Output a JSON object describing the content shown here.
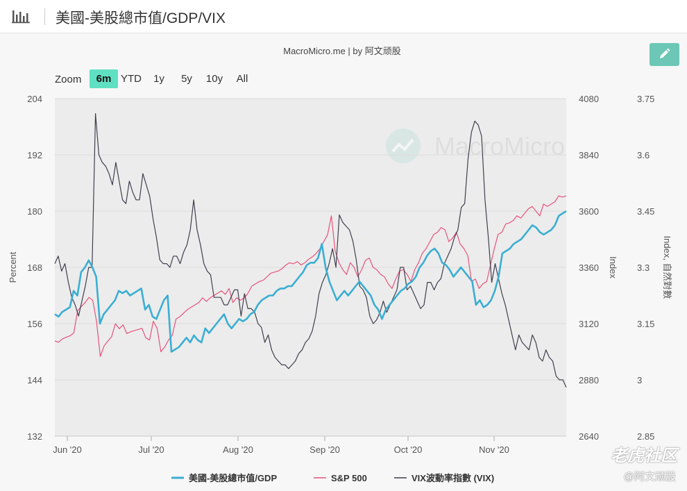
{
  "header": {
    "title": "美國-美股總市值/GDP/VIX",
    "chart_icon": "bar-chart-icon",
    "edit_icon": "pencil-icon"
  },
  "credit": "MacroMicro.me | by 阿文顽股",
  "watermark": "MacroMicro",
  "zoom": {
    "label": "Zoom",
    "options": [
      "6m",
      "YTD",
      "1y",
      "5y",
      "10y",
      "All"
    ],
    "selected": "6m"
  },
  "footer_watermark": {
    "brand": "老虎社区",
    "user": "@阿文顽股"
  },
  "colors": {
    "ratio": "#3aaed3",
    "sp500": "#e7527a",
    "vix": "#3e3e4e",
    "zoom_selected": "#5fe0c3",
    "edit_button": "#6cc7b6",
    "plot_bg": "#ececec"
  },
  "chart_data": {
    "type": "line",
    "x_ticks": [
      "Jun '20",
      "Jul '20",
      "Aug '20",
      "Sep '20",
      "Oct '20",
      "Nov '20"
    ],
    "axes": {
      "left": {
        "label": "Percent",
        "range": [
          132,
          204
        ],
        "ticks": [
          "204",
          "192",
          "180",
          "168",
          "156",
          "144",
          "132"
        ]
      },
      "middle": {
        "label": "Index",
        "range": [
          2640,
          4080
        ],
        "ticks": [
          "4080",
          "3840",
          "3600",
          "3360",
          "3120",
          "2880",
          "2640"
        ]
      },
      "right": {
        "label": "Index, 自然對數",
        "range": [
          2.85,
          3.75
        ],
        "ticks": [
          "3.75",
          "3.6",
          "3.45",
          "3.3",
          "3.15",
          "3",
          "2.85"
        ]
      }
    },
    "grid": true,
    "legend_position": "bottom",
    "series": [
      {
        "name": "美國-美股總市值/GDP",
        "axis": "left",
        "values": [
          158,
          157.5,
          158.5,
          159,
          159.5,
          163,
          162,
          167,
          168,
          169.5,
          168,
          166,
          156,
          158,
          159,
          160,
          161,
          163,
          162.5,
          163,
          162,
          162.5,
          163,
          163.5,
          159,
          160,
          157.5,
          157,
          159,
          161,
          162,
          150,
          150.5,
          151,
          152,
          153,
          152,
          153.5,
          152.5,
          152,
          155,
          154,
          155,
          156,
          157,
          158,
          156,
          155,
          156,
          157,
          156.5,
          157,
          158,
          158.5,
          160,
          161,
          161.5,
          162,
          162,
          163,
          163.5,
          163.5,
          164,
          164,
          165,
          166,
          167,
          168.5,
          169,
          169,
          170,
          173,
          168,
          165,
          163,
          161,
          162,
          163,
          162,
          163,
          164,
          165,
          164,
          163,
          162,
          160,
          159,
          157,
          159,
          160,
          161,
          162,
          163,
          163.5,
          164.5,
          165,
          166,
          168,
          169,
          170.5,
          171.5,
          172,
          171,
          169,
          168.5,
          167.5,
          166,
          167,
          168,
          167,
          166,
          165,
          160,
          161,
          159.5,
          160,
          161,
          163,
          166,
          171,
          171.5,
          172,
          173,
          173.5,
          174,
          175,
          176,
          177,
          176.5,
          175.5,
          175,
          175.5,
          176,
          177,
          179,
          179.5,
          180
        ]
      },
      {
        "name": "S&P 500",
        "axis": "middle",
        "values": [
          3046,
          3041,
          3055,
          3062,
          3068,
          3080,
          3175,
          3193,
          3210,
          3232,
          3220,
          3130,
          2980,
          3025,
          3045,
          3065,
          3120,
          3098,
          3115,
          3078,
          3085,
          3090,
          3095,
          3100,
          3060,
          3050,
          3130,
          3100,
          3000,
          3020,
          3050,
          3070,
          3140,
          3150,
          3165,
          3180,
          3190,
          3200,
          3210,
          3230,
          3215,
          3230,
          3240,
          3250,
          3260,
          3245,
          3270,
          3210,
          3230,
          3220,
          3230,
          3250,
          3280,
          3290,
          3300,
          3305,
          3320,
          3335,
          3340,
          3345,
          3355,
          3370,
          3380,
          3375,
          3385,
          3370,
          3380,
          3395,
          3405,
          3420,
          3440,
          3470,
          3500,
          3580,
          3430,
          3380,
          3350,
          3330,
          3380,
          3360,
          3320,
          3350,
          3390,
          3400,
          3360,
          3350,
          3330,
          3320,
          3290,
          3270,
          3310,
          3345,
          3350,
          3330,
          3300,
          3350,
          3380,
          3420,
          3440,
          3470,
          3500,
          3510,
          3530,
          3520,
          3470,
          3485,
          3510,
          3460,
          3440,
          3410,
          3300,
          3310,
          3270,
          3290,
          3300,
          3370,
          3440,
          3500,
          3510,
          3545,
          3550,
          3560,
          3580,
          3570,
          3590,
          3610,
          3620,
          3600,
          3580,
          3630,
          3620,
          3630,
          3640,
          3665,
          3660,
          3665
        ]
      },
      {
        "name": "VIX波動率指數 (VIX)",
        "axis": "right",
        "values": [
          3.31,
          3.33,
          3.29,
          3.31,
          3.26,
          3.22,
          3.2,
          3.17,
          3.21,
          3.25,
          3.3,
          3.3,
          3.71,
          3.6,
          3.58,
          3.57,
          3.55,
          3.52,
          3.58,
          3.53,
          3.48,
          3.47,
          3.53,
          3.5,
          3.48,
          3.48,
          3.55,
          3.52,
          3.49,
          3.43,
          3.38,
          3.32,
          3.31,
          3.31,
          3.3,
          3.33,
          3.33,
          3.31,
          3.34,
          3.36,
          3.4,
          3.48,
          3.4,
          3.36,
          3.31,
          3.29,
          3.28,
          3.22,
          3.22,
          3.22,
          3.2,
          3.2,
          3.22,
          3.24,
          3.24,
          3.17,
          3.23,
          3.19,
          3.19,
          3.18,
          3.15,
          3.14,
          3.1,
          3.12,
          3.08,
          3.06,
          3.05,
          3.04,
          3.04,
          3.03,
          3.04,
          3.05,
          3.07,
          3.08,
          3.1,
          3.11,
          3.13,
          3.17,
          3.23,
          3.26,
          3.28,
          3.31,
          3.35,
          3.3,
          3.44,
          3.42,
          3.41,
          3.4,
          3.37,
          3.32,
          3.25,
          3.24,
          3.22,
          3.17,
          3.15,
          3.16,
          3.18,
          3.21,
          3.18,
          3.2,
          3.22,
          3.24,
          3.3,
          3.3,
          3.24,
          3.25,
          3.23,
          3.21,
          3.19,
          3.2,
          3.26,
          3.26,
          3.24,
          3.26,
          3.27,
          3.31,
          3.33,
          3.35,
          3.38,
          3.4,
          3.46,
          3.47,
          3.59,
          3.66,
          3.69,
          3.68,
          3.65,
          3.48,
          3.38,
          3.26,
          3.31,
          3.27,
          3.23,
          3.2,
          3.16,
          3.12,
          3.08,
          3.12,
          3.1,
          3.09,
          3.08,
          3.12,
          3.1,
          3.06,
          3.05,
          3.08,
          3.06,
          3.05,
          3.01,
          3.0,
          3.0,
          2.98
        ]
      }
    ]
  }
}
